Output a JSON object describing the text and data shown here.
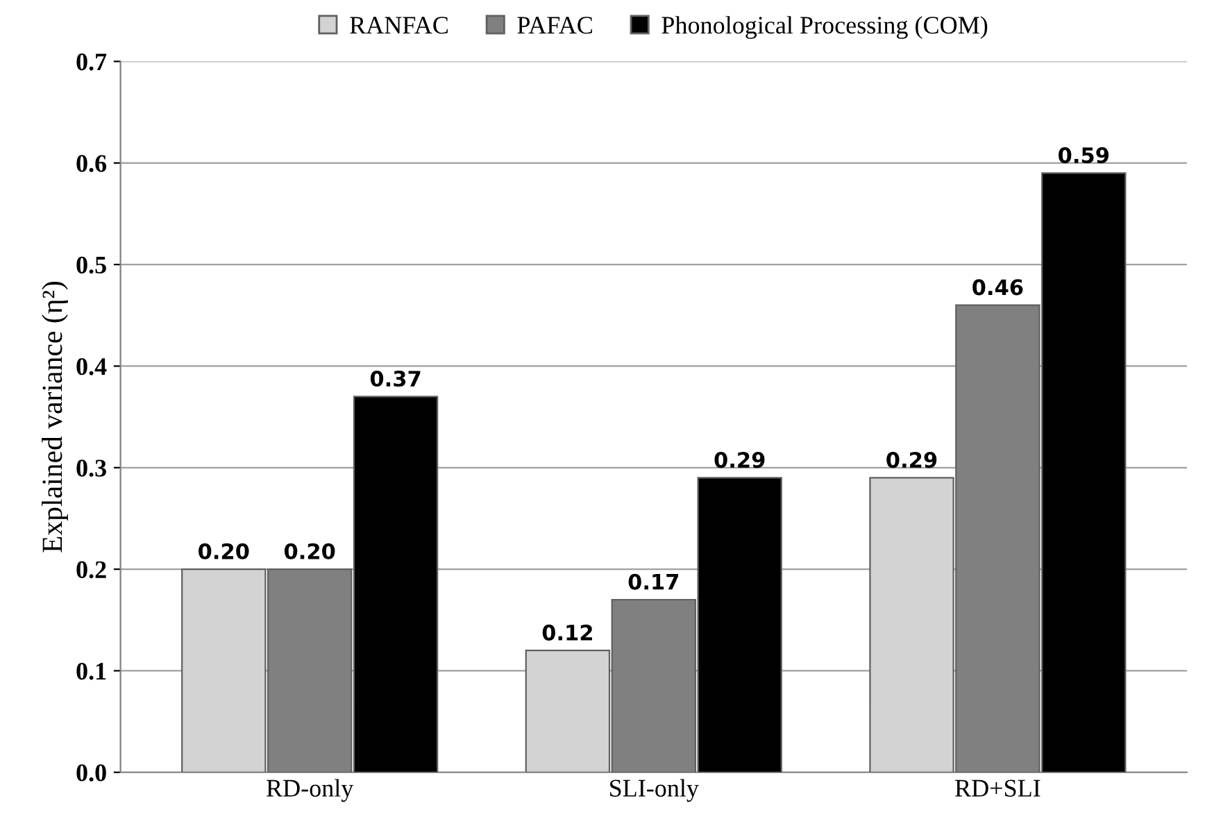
{
  "chart_data": {
    "type": "bar",
    "categories": [
      "RD-only",
      "SLI-only",
      "RD+SLI"
    ],
    "series": [
      {
        "name": "RANFAC",
        "color": "#d3d3d3",
        "values": [
          0.2,
          0.12,
          0.29
        ],
        "value_labels": [
          "0.20",
          "0.12",
          "0.29"
        ]
      },
      {
        "name": "PAFAC",
        "color": "#808080",
        "values": [
          0.2,
          0.17,
          0.46
        ],
        "value_labels": [
          "0.20",
          "0.17",
          "0.46"
        ]
      },
      {
        "name": "Phonological Processing (COM)",
        "color": "#000000",
        "values": [
          0.37,
          0.29,
          0.59
        ],
        "value_labels": [
          "0.37",
          "0.29",
          "0.59"
        ]
      }
    ],
    "ylabel": "Explained variance (η²)",
    "ylim": [
      0,
      0.7
    ],
    "yticks": [
      {
        "value": 0,
        "label": "0.0"
      },
      {
        "value": 0.1,
        "label": "0.1"
      },
      {
        "value": 0.2,
        "label": "0.2"
      },
      {
        "value": 0.3,
        "label": "0.3"
      },
      {
        "value": 0.4,
        "label": "0.4"
      },
      {
        "value": 0.5,
        "label": "0.5"
      },
      {
        "value": 0.6,
        "label": "0.6"
      },
      {
        "value": 0.7,
        "label": "0.7"
      }
    ],
    "grid": "y",
    "legend": "top"
  }
}
